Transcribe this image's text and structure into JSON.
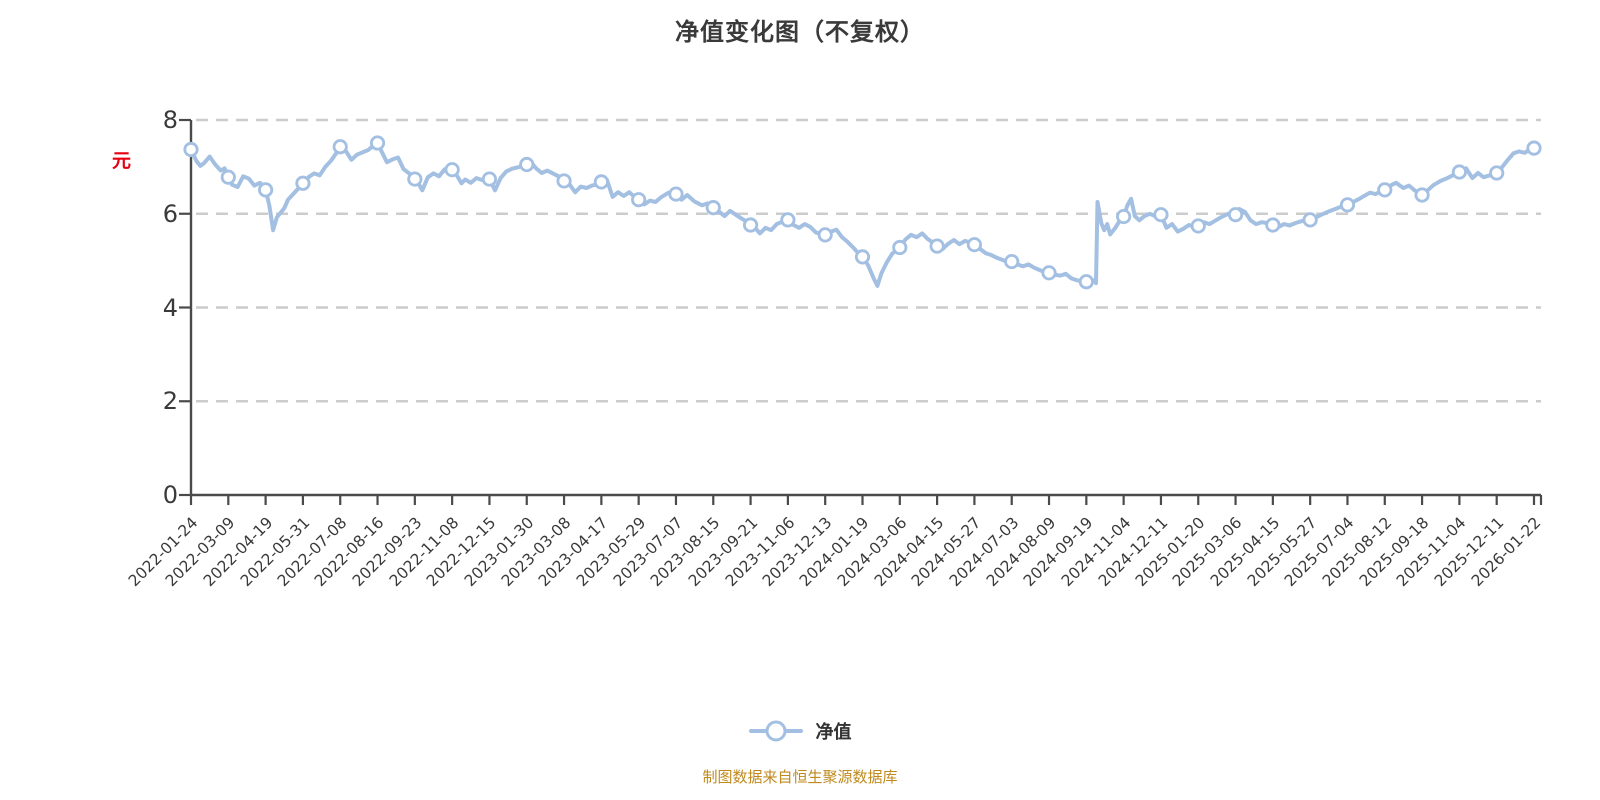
{
  "title": "净值变化图（不复权）",
  "y_axis": {
    "unit_label": "元",
    "tick_labels": [
      "8",
      "6",
      "4",
      "2",
      "0"
    ]
  },
  "legend": {
    "label": "净值"
  },
  "footer": "制图数据来自恒生聚源数据库",
  "colors": {
    "line": "#a3bfe1",
    "marker_fill": "#ffffff",
    "marker_stroke": "#a3bfe1",
    "grid": "#cccccc",
    "axis": "#4a4a4a",
    "text": "#3a3a3a",
    "unit_label": "#e60012",
    "footer": "#c08a1e"
  },
  "chart_data": {
    "type": "line",
    "title": "净值变化图（不复权）",
    "series_name": "净值",
    "ylim": [
      0,
      8
    ],
    "y_ticks": [
      8,
      6,
      4,
      2,
      0
    ],
    "y_gridlines_dashed": [
      8,
      6,
      4,
      2
    ],
    "grid": "horizontal-dashed",
    "legend_position": "bottom",
    "categories": [
      "2022-01-24",
      "2022-03-09",
      "2022-04-19",
      "2022-05-31",
      "2022-07-08",
      "2022-08-16",
      "2022-09-23",
      "2022-11-08",
      "2022-12-15",
      "2023-01-30",
      "2023-03-08",
      "2023-04-17",
      "2023-05-29",
      "2023-07-07",
      "2023-08-15",
      "2023-09-21",
      "2023-11-06",
      "2023-12-13",
      "2024-01-19",
      "2024-03-06",
      "2024-04-15",
      "2024-05-27",
      "2024-07-03",
      "2024-08-09",
      "2024-09-19",
      "2024-11-04",
      "2024-12-11",
      "2025-01-20",
      "2025-03-06",
      "2025-04-15",
      "2025-05-27",
      "2025-07-04",
      "2025-08-12",
      "2025-09-18",
      "2025-11-04",
      "2025-12-11",
      "2026-01-22"
    ],
    "values": [
      7.37,
      6.78,
      6.51,
      6.65,
      7.43,
      7.51,
      6.74,
      6.94,
      6.74,
      7.05,
      6.7,
      6.68,
      6.3,
      6.42,
      6.13,
      5.76,
      5.87,
      5.55,
      5.08,
      5.28,
      5.31,
      5.34,
      4.98,
      4.74,
      4.55,
      5.94,
      5.98,
      5.74,
      5.98,
      5.76,
      5.87,
      6.19,
      6.51,
      6.4,
      6.89,
      6.87,
      7.4
    ],
    "line_detail": [
      [
        0,
        7.37
      ],
      [
        0.15,
        7.12
      ],
      [
        0.25,
        7.02
      ],
      [
        0.35,
        7.08
      ],
      [
        0.5,
        7.22
      ],
      [
        0.65,
        7.05
      ],
      [
        0.8,
        6.92
      ],
      [
        0.9,
        6.97
      ],
      [
        1,
        6.78
      ],
      [
        1.1,
        6.62
      ],
      [
        1.25,
        6.57
      ],
      [
        1.4,
        6.8
      ],
      [
        1.55,
        6.75
      ],
      [
        1.7,
        6.6
      ],
      [
        1.85,
        6.66
      ],
      [
        2,
        6.51
      ],
      [
        2.1,
        6.18
      ],
      [
        2.2,
        5.65
      ],
      [
        2.3,
        5.92
      ],
      [
        2.4,
        6.02
      ],
      [
        2.5,
        6.12
      ],
      [
        2.6,
        6.3
      ],
      [
        2.75,
        6.43
      ],
      [
        2.9,
        6.56
      ],
      [
        3,
        6.65
      ],
      [
        3.15,
        6.78
      ],
      [
        3.3,
        6.86
      ],
      [
        3.45,
        6.82
      ],
      [
        3.6,
        7.0
      ],
      [
        3.75,
        7.13
      ],
      [
        3.9,
        7.3
      ],
      [
        4,
        7.43
      ],
      [
        4.15,
        7.34
      ],
      [
        4.3,
        7.15
      ],
      [
        4.45,
        7.26
      ],
      [
        4.6,
        7.31
      ],
      [
        4.75,
        7.36
      ],
      [
        4.9,
        7.46
      ],
      [
        5,
        7.51
      ],
      [
        5.1,
        7.34
      ],
      [
        5.25,
        7.1
      ],
      [
        5.4,
        7.16
      ],
      [
        5.55,
        7.2
      ],
      [
        5.7,
        6.95
      ],
      [
        5.85,
        6.86
      ],
      [
        6,
        6.74
      ],
      [
        6.1,
        6.64
      ],
      [
        6.2,
        6.5
      ],
      [
        6.35,
        6.78
      ],
      [
        6.5,
        6.86
      ],
      [
        6.65,
        6.8
      ],
      [
        6.8,
        6.95
      ],
      [
        6.9,
        6.88
      ],
      [
        7,
        6.94
      ],
      [
        7.1,
        6.85
      ],
      [
        7.25,
        6.65
      ],
      [
        7.35,
        6.73
      ],
      [
        7.5,
        6.66
      ],
      [
        7.65,
        6.76
      ],
      [
        7.8,
        6.72
      ],
      [
        8,
        6.74
      ],
      [
        8.15,
        6.5
      ],
      [
        8.3,
        6.76
      ],
      [
        8.45,
        6.9
      ],
      [
        8.6,
        6.96
      ],
      [
        8.8,
        7.0
      ],
      [
        9,
        7.05
      ],
      [
        9.1,
        7.11
      ],
      [
        9.25,
        6.97
      ],
      [
        9.4,
        6.87
      ],
      [
        9.55,
        6.92
      ],
      [
        9.7,
        6.86
      ],
      [
        9.85,
        6.8
      ],
      [
        10,
        6.7
      ],
      [
        10.15,
        6.62
      ],
      [
        10.3,
        6.46
      ],
      [
        10.45,
        6.58
      ],
      [
        10.6,
        6.55
      ],
      [
        10.75,
        6.6
      ],
      [
        10.9,
        6.63
      ],
      [
        11,
        6.68
      ],
      [
        11.15,
        6.72
      ],
      [
        11.3,
        6.36
      ],
      [
        11.45,
        6.46
      ],
      [
        11.6,
        6.38
      ],
      [
        11.75,
        6.46
      ],
      [
        11.9,
        6.35
      ],
      [
        12,
        6.3
      ],
      [
        12.15,
        6.2
      ],
      [
        12.3,
        6.28
      ],
      [
        12.45,
        6.25
      ],
      [
        12.6,
        6.35
      ],
      [
        12.8,
        6.45
      ],
      [
        13,
        6.42
      ],
      [
        13.15,
        6.3
      ],
      [
        13.3,
        6.4
      ],
      [
        13.5,
        6.26
      ],
      [
        13.7,
        6.18
      ],
      [
        13.85,
        6.22
      ],
      [
        14,
        6.13
      ],
      [
        14.15,
        6.05
      ],
      [
        14.3,
        5.95
      ],
      [
        14.45,
        6.06
      ],
      [
        14.6,
        5.98
      ],
      [
        14.75,
        5.9
      ],
      [
        14.9,
        5.83
      ],
      [
        15,
        5.76
      ],
      [
        15.1,
        5.72
      ],
      [
        15.25,
        5.58
      ],
      [
        15.4,
        5.7
      ],
      [
        15.55,
        5.65
      ],
      [
        15.7,
        5.78
      ],
      [
        15.85,
        5.83
      ],
      [
        16,
        5.87
      ],
      [
        16.15,
        5.76
      ],
      [
        16.3,
        5.7
      ],
      [
        16.45,
        5.78
      ],
      [
        16.6,
        5.72
      ],
      [
        16.75,
        5.6
      ],
      [
        16.9,
        5.57
      ],
      [
        17,
        5.55
      ],
      [
        17.15,
        5.62
      ],
      [
        17.3,
        5.66
      ],
      [
        17.45,
        5.5
      ],
      [
        17.6,
        5.4
      ],
      [
        17.75,
        5.28
      ],
      [
        17.9,
        5.15
      ],
      [
        18,
        5.08
      ],
      [
        18.15,
        4.9
      ],
      [
        18.3,
        4.62
      ],
      [
        18.4,
        4.46
      ],
      [
        18.5,
        4.72
      ],
      [
        18.65,
        4.96
      ],
      [
        18.8,
        5.15
      ],
      [
        19,
        5.28
      ],
      [
        19.15,
        5.45
      ],
      [
        19.3,
        5.55
      ],
      [
        19.45,
        5.5
      ],
      [
        19.6,
        5.58
      ],
      [
        19.75,
        5.46
      ],
      [
        19.9,
        5.38
      ],
      [
        20,
        5.31
      ],
      [
        20.15,
        5.25
      ],
      [
        20.3,
        5.36
      ],
      [
        20.45,
        5.44
      ],
      [
        20.6,
        5.35
      ],
      [
        20.75,
        5.42
      ],
      [
        20.9,
        5.38
      ],
      [
        21,
        5.34
      ],
      [
        21.15,
        5.25
      ],
      [
        21.3,
        5.16
      ],
      [
        21.45,
        5.12
      ],
      [
        21.6,
        5.06
      ],
      [
        21.8,
        5.0
      ],
      [
        22,
        4.98
      ],
      [
        22.15,
        4.92
      ],
      [
        22.3,
        4.88
      ],
      [
        22.45,
        4.92
      ],
      [
        22.6,
        4.85
      ],
      [
        22.8,
        4.78
      ],
      [
        23,
        4.74
      ],
      [
        23.15,
        4.7
      ],
      [
        23.3,
        4.68
      ],
      [
        23.45,
        4.72
      ],
      [
        23.6,
        4.62
      ],
      [
        23.75,
        4.58
      ],
      [
        23.9,
        4.56
      ],
      [
        24,
        4.55
      ],
      [
        24.1,
        4.52
      ],
      [
        24.18,
        4.58
      ],
      [
        24.26,
        4.52
      ],
      [
        24.3,
        6.25
      ],
      [
        24.4,
        5.8
      ],
      [
        24.48,
        5.65
      ],
      [
        24.56,
        5.78
      ],
      [
        24.64,
        5.56
      ],
      [
        24.78,
        5.7
      ],
      [
        24.9,
        5.86
      ],
      [
        25,
        5.94
      ],
      [
        25.1,
        6.18
      ],
      [
        25.2,
        6.32
      ],
      [
        25.3,
        5.95
      ],
      [
        25.42,
        5.86
      ],
      [
        25.56,
        5.95
      ],
      [
        25.7,
        6.0
      ],
      [
        25.85,
        5.95
      ],
      [
        26,
        5.98
      ],
      [
        26.15,
        5.7
      ],
      [
        26.3,
        5.78
      ],
      [
        26.45,
        5.62
      ],
      [
        26.6,
        5.68
      ],
      [
        26.75,
        5.76
      ],
      [
        26.9,
        5.72
      ],
      [
        27,
        5.74
      ],
      [
        27.15,
        5.82
      ],
      [
        27.3,
        5.78
      ],
      [
        27.45,
        5.85
      ],
      [
        27.6,
        5.92
      ],
      [
        27.8,
        6.0
      ],
      [
        28,
        5.98
      ],
      [
        28.1,
        6.1
      ],
      [
        28.25,
        6.04
      ],
      [
        28.4,
        5.86
      ],
      [
        28.55,
        5.78
      ],
      [
        28.7,
        5.82
      ],
      [
        28.85,
        5.8
      ],
      [
        29,
        5.76
      ],
      [
        29.15,
        5.72
      ],
      [
        29.3,
        5.78
      ],
      [
        29.45,
        5.75
      ],
      [
        29.6,
        5.8
      ],
      [
        29.8,
        5.85
      ],
      [
        30,
        5.87
      ],
      [
        30.15,
        5.92
      ],
      [
        30.3,
        5.98
      ],
      [
        30.5,
        6.05
      ],
      [
        30.7,
        6.11
      ],
      [
        30.85,
        6.16
      ],
      [
        31,
        6.19
      ],
      [
        31.15,
        6.25
      ],
      [
        31.3,
        6.31
      ],
      [
        31.45,
        6.38
      ],
      [
        31.6,
        6.45
      ],
      [
        31.75,
        6.42
      ],
      [
        31.9,
        6.48
      ],
      [
        32,
        6.51
      ],
      [
        32.15,
        6.6
      ],
      [
        32.3,
        6.66
      ],
      [
        32.5,
        6.55
      ],
      [
        32.65,
        6.6
      ],
      [
        32.8,
        6.5
      ],
      [
        32.9,
        6.45
      ],
      [
        33,
        6.4
      ],
      [
        33.15,
        6.5
      ],
      [
        33.3,
        6.61
      ],
      [
        33.5,
        6.7
      ],
      [
        33.7,
        6.77
      ],
      [
        33.85,
        6.83
      ],
      [
        34,
        6.89
      ],
      [
        34.18,
        6.97
      ],
      [
        34.35,
        6.76
      ],
      [
        34.5,
        6.87
      ],
      [
        34.65,
        6.78
      ],
      [
        34.82,
        6.82
      ],
      [
        35,
        6.87
      ],
      [
        35.15,
        7.0
      ],
      [
        35.3,
        7.15
      ],
      [
        35.45,
        7.29
      ],
      [
        35.6,
        7.33
      ],
      [
        35.75,
        7.3
      ],
      [
        35.9,
        7.38
      ],
      [
        36,
        7.4
      ]
    ]
  }
}
